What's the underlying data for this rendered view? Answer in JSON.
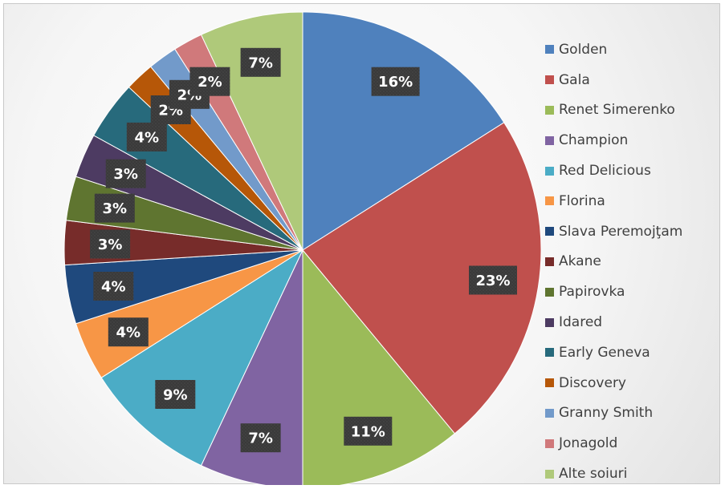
{
  "chart_data": {
    "type": "pie",
    "title": "",
    "legend_position": "right",
    "slices": [
      {
        "label": "Golden",
        "value": 16,
        "display": "16%",
        "color": "#4f81bd"
      },
      {
        "label": "Gala",
        "value": 23,
        "display": "23%",
        "color": "#c0504d"
      },
      {
        "label": "Renet Simerenko",
        "value": 11,
        "display": "11%",
        "color": "#9bbb59"
      },
      {
        "label": "Champion",
        "value": 7,
        "display": "7%",
        "color": "#8064a2"
      },
      {
        "label": "Red Delicious",
        "value": 9,
        "display": "9%",
        "color": "#4bacc6"
      },
      {
        "label": "Florina",
        "value": 4,
        "display": "4%",
        "color": "#f79646"
      },
      {
        "label": "Slava Peremojţam",
        "value": 4,
        "display": "4%",
        "color": "#1f497d"
      },
      {
        "label": "Akane",
        "value": 3,
        "display": "3%",
        "color": "#772c2a"
      },
      {
        "label": "Papirovka",
        "value": 3,
        "display": "3%",
        "color": "#5f7530"
      },
      {
        "label": "Idared",
        "value": 3,
        "display": "3%",
        "color": "#4d3b62"
      },
      {
        "label": "Early Geneva",
        "value": 4,
        "display": "4%",
        "color": "#276a7c"
      },
      {
        "label": "Discovery",
        "value": 2,
        "display": "2%",
        "color": "#b65708"
      },
      {
        "label": "Granny Smith",
        "value": 2,
        "display": "2%",
        "color": "#729aca"
      },
      {
        "label": "Jonagold",
        "value": 2,
        "display": "2%",
        "color": "#d0797b"
      },
      {
        "label": "Alte soiuri",
        "value": 7,
        "display": "7%",
        "color": "#afc97a"
      }
    ]
  }
}
